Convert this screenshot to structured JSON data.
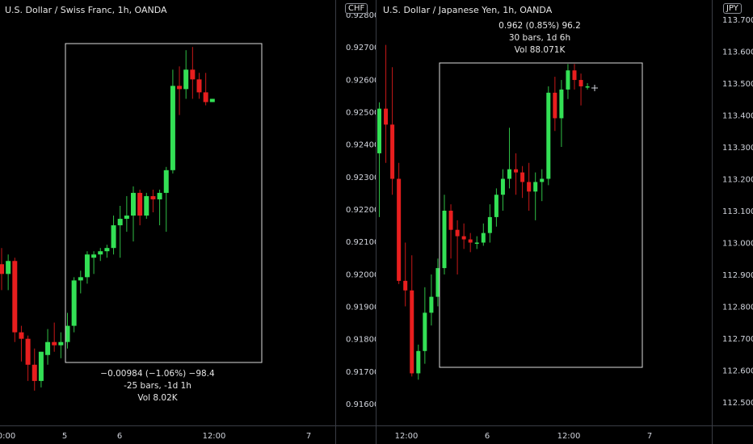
{
  "left": {
    "title": "U.S. Dollar / Swiss Franc, 1h, OANDA",
    "currency": "CHF",
    "price_ticks": [
      "0.92800",
      "0.92700",
      "0.92600",
      "0.92500",
      "0.92400",
      "0.92300",
      "0.92200",
      "0.92100",
      "0.92000",
      "0.91900",
      "0.91800",
      "0.91700",
      "0.91600"
    ],
    "time_ticks": [
      "0:00",
      "5",
      "6",
      "12:00",
      "7"
    ],
    "measure": {
      "line1": "−0.00984 (−1.06%) −98.4",
      "line2": "-25 bars, -1d 1h",
      "line3": "Vol 8.02K"
    }
  },
  "right": {
    "title": "U.S. Dollar / Japanese Yen, 1h, OANDA",
    "currency": "JPY",
    "price_ticks": [
      "113.700",
      "113.600",
      "113.500",
      "113.400",
      "113.300",
      "113.200",
      "113.100",
      "113.000",
      "112.900",
      "112.800",
      "112.700",
      "112.600",
      "112.500"
    ],
    "time_ticks": [
      "12:00",
      "6",
      "12:00",
      "7"
    ],
    "measure": {
      "line1": "0.962 (0.85%) 96.2",
      "line2": "30 bars, 1d 6h",
      "line3": "Vol 88.071K"
    }
  },
  "colors": {
    "up": "#33e055",
    "down": "#e81e1e",
    "wick_up": "#2fbf45",
    "wick_down": "#c81818",
    "box": "#dcdcdc"
  },
  "chart_data": [
    {
      "type": "candlestick",
      "title": "U.S. Dollar / Swiss Franc, 1h, OANDA",
      "ylim": [
        0.9156,
        0.9283
      ],
      "candles": [
        [
          0.9203,
          0.9208,
          0.9195,
          0.92
        ],
        [
          0.92,
          0.9206,
          0.9195,
          0.9204
        ],
        [
          0.9204,
          0.9205,
          0.9179,
          0.9182
        ],
        [
          0.9182,
          0.9184,
          0.9173,
          0.918
        ],
        [
          0.918,
          0.9181,
          0.9167,
          0.9172
        ],
        [
          0.9172,
          0.9177,
          0.9164,
          0.9167
        ],
        [
          0.9167,
          0.9176,
          0.9165,
          0.9176
        ],
        [
          0.9175,
          0.9183,
          0.9172,
          0.9179
        ],
        [
          0.9179,
          0.9185,
          0.9176,
          0.9178
        ],
        [
          0.9178,
          0.9182,
          0.9174,
          0.9179
        ],
        [
          0.9179,
          0.9188,
          0.9177,
          0.9184
        ],
        [
          0.9184,
          0.9199,
          0.9182,
          0.9198
        ],
        [
          0.9198,
          0.9201,
          0.9194,
          0.9199
        ],
        [
          0.9199,
          0.9207,
          0.9197,
          0.9206
        ],
        [
          0.9205,
          0.9207,
          0.92,
          0.9206
        ],
        [
          0.9206,
          0.9208,
          0.9204,
          0.9207
        ],
        [
          0.9207,
          0.9209,
          0.9205,
          0.9208
        ],
        [
          0.9208,
          0.9218,
          0.9206,
          0.9215
        ],
        [
          0.9215,
          0.9221,
          0.9205,
          0.9217
        ],
        [
          0.9217,
          0.9224,
          0.9213,
          0.9218
        ],
        [
          0.9218,
          0.9227,
          0.921,
          0.9225
        ],
        [
          0.9225,
          0.9226,
          0.9215,
          0.9218
        ],
        [
          0.9218,
          0.9225,
          0.9217,
          0.9224
        ],
        [
          0.9224,
          0.9226,
          0.9219,
          0.9223
        ],
        [
          0.9223,
          0.9226,
          0.9215,
          0.9225
        ],
        [
          0.9225,
          0.9233,
          0.9213,
          0.9232
        ],
        [
          0.9232,
          0.9263,
          0.9231,
          0.9258
        ],
        [
          0.9258,
          0.9264,
          0.9249,
          0.9257
        ],
        [
          0.9257,
          0.9269,
          0.9254,
          0.9263
        ],
        [
          0.9263,
          0.927,
          0.9254,
          0.926
        ],
        [
          0.926,
          0.9262,
          0.9254,
          0.9256
        ],
        [
          0.9256,
          0.9262,
          0.9252,
          0.9253
        ],
        [
          0.9253,
          0.9254,
          0.9253,
          0.9254
        ]
      ]
    },
    {
      "type": "candlestick",
      "title": "U.S. Dollar / Japanese Yen, 1h, OANDA",
      "ylim": [
        112.45,
        113.72
      ],
      "candles": [
        [
          113.28,
          113.44,
          113.08,
          113.42
        ],
        [
          113.42,
          113.62,
          113.25,
          113.37
        ],
        [
          113.37,
          113.55,
          113.15,
          113.2
        ],
        [
          113.2,
          113.25,
          112.87,
          112.88
        ],
        [
          112.88,
          113.0,
          112.8,
          112.85
        ],
        [
          112.85,
          112.96,
          112.58,
          112.59
        ],
        [
          112.59,
          112.68,
          112.57,
          112.66
        ],
        [
          112.66,
          112.86,
          112.62,
          112.78
        ],
        [
          112.78,
          112.9,
          112.74,
          112.83
        ],
        [
          112.83,
          112.95,
          112.8,
          112.92
        ],
        [
          112.92,
          113.15,
          112.9,
          113.1
        ],
        [
          113.1,
          113.12,
          112.95,
          113.04
        ],
        [
          113.04,
          113.07,
          112.9,
          113.02
        ],
        [
          113.02,
          113.06,
          112.98,
          113.01
        ],
        [
          113.01,
          113.03,
          112.97,
          113.0
        ],
        [
          113.0,
          113.02,
          112.98,
          113.0
        ],
        [
          113.0,
          113.06,
          112.99,
          113.03
        ],
        [
          113.03,
          113.12,
          113.0,
          113.08
        ],
        [
          113.08,
          113.17,
          113.05,
          113.15
        ],
        [
          113.15,
          113.23,
          113.1,
          113.2
        ],
        [
          113.2,
          113.36,
          113.17,
          113.23
        ],
        [
          113.23,
          113.28,
          113.15,
          113.22
        ],
        [
          113.22,
          113.24,
          113.14,
          113.19
        ],
        [
          113.19,
          113.25,
          113.1,
          113.16
        ],
        [
          113.16,
          113.22,
          113.07,
          113.19
        ],
        [
          113.19,
          113.23,
          113.13,
          113.2
        ],
        [
          113.2,
          113.49,
          113.18,
          113.47
        ],
        [
          113.47,
          113.52,
          113.35,
          113.39
        ],
        [
          113.39,
          113.51,
          113.3,
          113.48
        ],
        [
          113.48,
          113.56,
          113.45,
          113.54
        ],
        [
          113.54,
          113.56,
          113.48,
          113.51
        ],
        [
          113.51,
          113.53,
          113.43,
          113.49
        ],
        [
          113.49,
          113.5,
          113.48,
          113.49
        ]
      ]
    }
  ]
}
